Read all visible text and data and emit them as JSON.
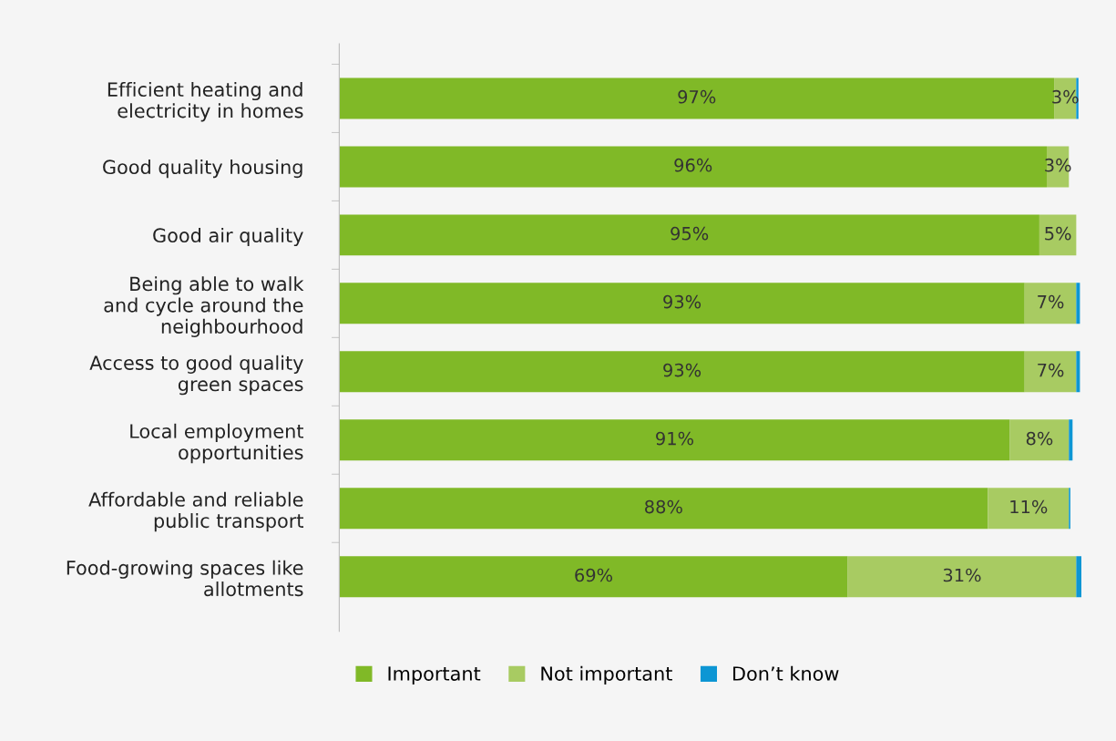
{
  "chart_data": {
    "type": "bar",
    "orientation": "horizontal",
    "stacked": true,
    "categories": [
      "Efficient heating and\nelectricity in homes",
      "Good quality housing",
      "Good air quality",
      "Being able to walk\nand cycle around the\nneighbourhood",
      "Access to good quality\ngreen spaces",
      "Local employment\nopportunities",
      "Affordable and reliable\npublic transport",
      "Food-growing spaces like\nallotments"
    ],
    "series": [
      {
        "name": "Important",
        "color": "#80b927",
        "values": [
          97,
          96,
          95,
          93,
          93,
          91,
          88,
          69
        ],
        "value_labels": [
          "97%",
          "96%",
          "95%",
          "93%",
          "93%",
          "91%",
          "88%",
          "69%"
        ]
      },
      {
        "name": "Not important",
        "color": "#a8cb62",
        "values": [
          3,
          3,
          5,
          7,
          7,
          8,
          11,
          31
        ],
        "value_labels": [
          "3%",
          "3%",
          "5%",
          "7%",
          "7%",
          "8%",
          "11%",
          "31%"
        ]
      },
      {
        "name": "Don’t know",
        "color": "#0d96d4",
        "values": [
          0.3,
          0,
          0,
          0.5,
          0.5,
          0.5,
          0.2,
          0.7
        ],
        "value_labels": [
          null,
          null,
          null,
          null,
          null,
          null,
          null,
          null
        ]
      }
    ],
    "legend": "bottom",
    "grid": false,
    "tick_labels": "y"
  }
}
